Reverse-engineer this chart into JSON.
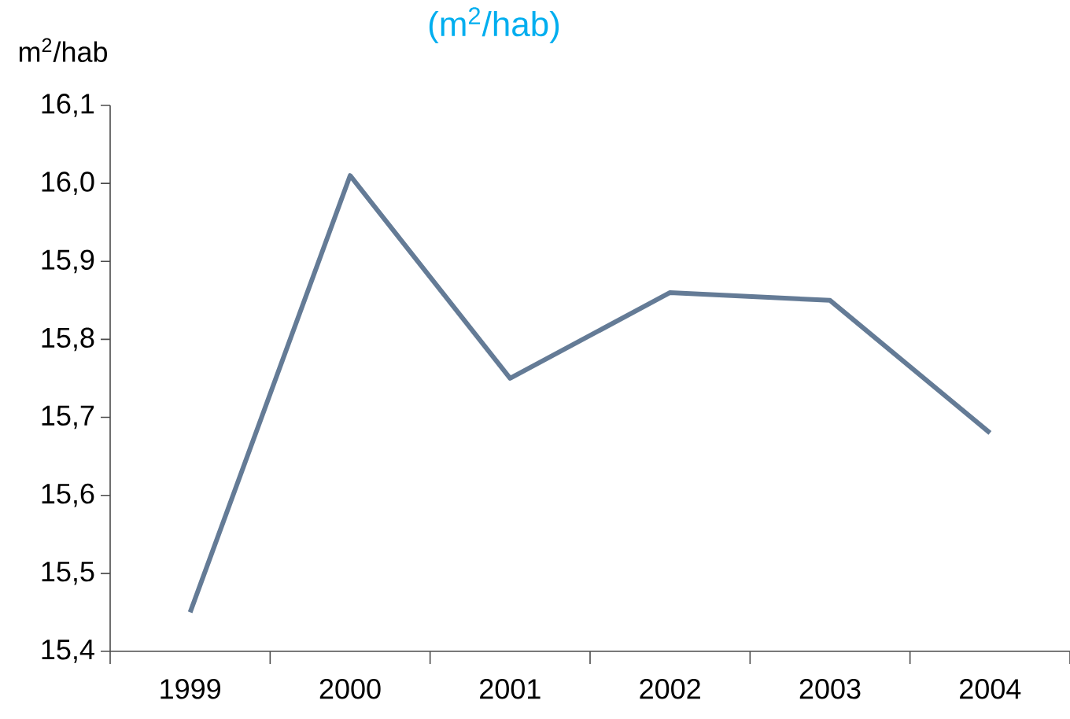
{
  "chart_data": {
    "type": "line",
    "title": "(m$^{2}$/hab)",
    "ylabel": "m$^{2}$/hab",
    "categories": [
      "1999",
      "2000",
      "2001",
      "2002",
      "2003",
      "2004"
    ],
    "series": [
      {
        "color": "#647b96",
        "values": [
          15.45,
          16.01,
          15.75,
          15.86,
          15.85,
          15.68
        ]
      }
    ],
    "ylim": [
      15.4,
      16.1
    ],
    "yticks": [
      {
        "value": 15.4,
        "label": "15,4"
      },
      {
        "value": 15.5,
        "label": "15,5"
      },
      {
        "value": 15.6,
        "label": "15,6"
      },
      {
        "value": 15.7,
        "label": "15,7"
      },
      {
        "value": 15.8,
        "label": "15,8"
      },
      {
        "value": 15.9,
        "label": "15,9"
      },
      {
        "value": 16.0,
        "label": "16,0"
      },
      {
        "value": 16.1,
        "label": "16,1"
      }
    ],
    "grid": false,
    "marker": "none",
    "line_style": "solid"
  }
}
